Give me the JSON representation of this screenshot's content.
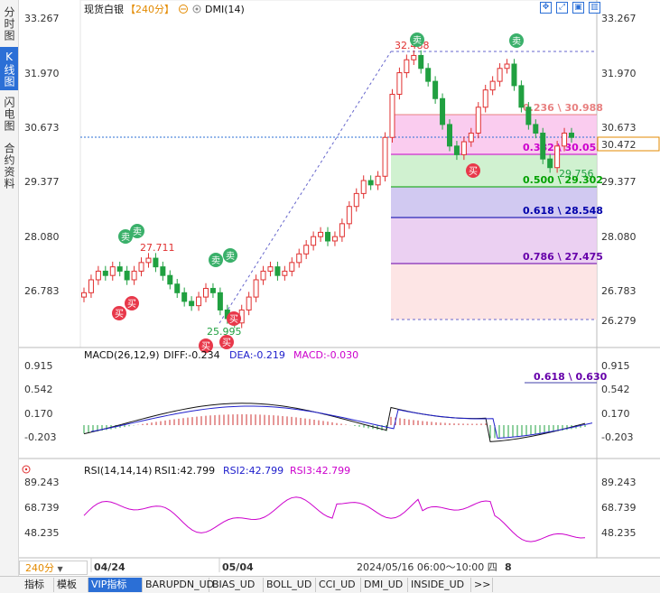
{
  "side_tabs": [
    "分时图",
    "K线图",
    "闪电图",
    "合约资料"
  ],
  "header": {
    "title": "现货白银",
    "period": "【240分】",
    "indicator": "DMI(14)"
  },
  "macd_header": {
    "name": "MACD(26,12,9)",
    "diff": "DIFF:-0.234",
    "dea": "DEA:-0.219",
    "macd": "MACD:-0.030"
  },
  "rsi_header": {
    "name": "RSI(14,14,14)",
    "rsi1": "RSI1:42.799",
    "rsi2": "RSI2:42.799",
    "rsi3": "RSI3:42.799"
  },
  "price_axis": [
    "33.267",
    "31.970",
    "30.673",
    "29.377",
    "28.080",
    "26.783"
  ],
  "current_price": "30.472",
  "low_tag": "26.279",
  "macd_axis": [
    "0.915",
    "0.542",
    "0.170",
    "-0.203"
  ],
  "macd_right_label": "0.630",
  "macd_fib_overlap": "0.618 \\ 0.630",
  "rsi_axis": [
    "89.243",
    "68.739",
    "48.235"
  ],
  "x_labels": {
    "a": "04/24",
    "b": "05/04",
    "cursor": "2024/05/16 06:00～10:00 四",
    "tail": "8"
  },
  "period_selector": "240分",
  "annotations": {
    "high": "32.488",
    "low": "25.995",
    "mid_high": "27.711",
    "recent_low": "29.756"
  },
  "signals": {
    "buy": "买",
    "sell": "卖"
  },
  "fib_levels": [
    {
      "label": "0.236 \\ 30.988",
      "color": "#e88080"
    },
    {
      "label": "0.382 \\ 30.055",
      "color": "#cc00cc"
    },
    {
      "label": "0.500 \\ 29.302",
      "color": "#00a000"
    },
    {
      "label": "0.618 \\ 28.548",
      "color": "#0000aa"
    },
    {
      "label": "0.786 \\ 27.475",
      "color": "#6600aa"
    }
  ],
  "bottom_tabs": [
    "指标",
    "模板",
    "VIP指标",
    "BARUPDN_UD",
    "BIAS_UD",
    "BOLL_UD",
    "CCI_UD",
    "DMI_UD",
    "INSIDE_UD",
    ">>"
  ],
  "chart_data": {
    "type": "candlestick",
    "title": "现货白银",
    "price_range": [
      26.279,
      33.267
    ],
    "candles_close_approx": [
      26.9,
      27.2,
      27.4,
      27.3,
      27.5,
      27.4,
      27.2,
      27.4,
      27.6,
      27.7,
      27.5,
      27.3,
      27.1,
      26.9,
      26.7,
      26.6,
      26.8,
      27.0,
      26.9,
      26.5,
      26.3,
      26.2,
      26.5,
      26.8,
      27.2,
      27.4,
      27.5,
      27.3,
      27.4,
      27.6,
      27.8,
      28.0,
      28.2,
      28.3,
      28.1,
      28.2,
      28.5,
      28.9,
      29.2,
      29.5,
      29.4,
      29.6,
      30.5,
      31.5,
      32.0,
      32.3,
      32.4,
      32.1,
      31.8,
      31.4,
      30.8,
      30.3,
      30.1,
      30.4,
      30.6,
      31.2,
      31.6,
      31.8,
      32.1,
      32.2,
      31.7,
      31.2,
      30.8,
      30.6,
      30.0,
      29.8,
      30.3,
      30.6,
      30.5
    ],
    "fibonacci": {
      "high": 32.488,
      "low": 26.279,
      "levels": [
        {
          "ratio": 0.236,
          "price": 30.988
        },
        {
          "ratio": 0.382,
          "price": 30.055
        },
        {
          "ratio": 0.5,
          "price": 29.302
        },
        {
          "ratio": 0.618,
          "price": 28.548
        },
        {
          "ratio": 0.786,
          "price": 27.475
        }
      ]
    },
    "macd": {
      "diff": -0.234,
      "dea": -0.219,
      "macd": -0.03,
      "ylim": [
        -0.203,
        0.915
      ]
    },
    "rsi": {
      "rsi1": 42.799,
      "rsi2": 42.799,
      "rsi3": 42.799,
      "ylim": [
        48.235,
        89.243
      ]
    }
  }
}
